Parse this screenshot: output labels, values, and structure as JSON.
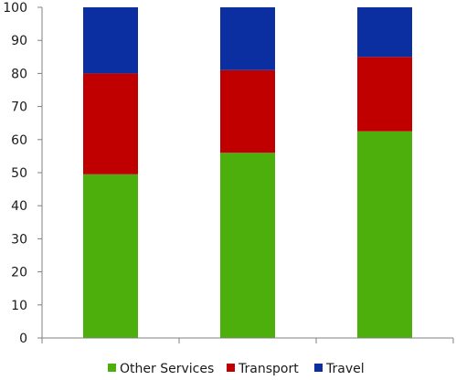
{
  "chart_data": {
    "type": "bar",
    "stacked": true,
    "categories": [
      "",
      "",
      ""
    ],
    "series": [
      {
        "name": "Other Services",
        "color": "#4caf0c",
        "values": [
          49.5,
          56,
          62.5
        ]
      },
      {
        "name": "Transport",
        "color": "#c00000",
        "values": [
          30.5,
          25,
          22.5
        ]
      },
      {
        "name": "Travel",
        "color": "#0b2fa0",
        "values": [
          20,
          19,
          15
        ]
      }
    ],
    "yticks": [
      "0",
      "10",
      "20",
      "30",
      "40",
      "50",
      "60",
      "70",
      "80",
      "90",
      "100"
    ],
    "ylim": [
      0,
      100
    ],
    "grid": false,
    "legend_position": "bottom",
    "title": "",
    "xlabel": "",
    "ylabel": ""
  }
}
